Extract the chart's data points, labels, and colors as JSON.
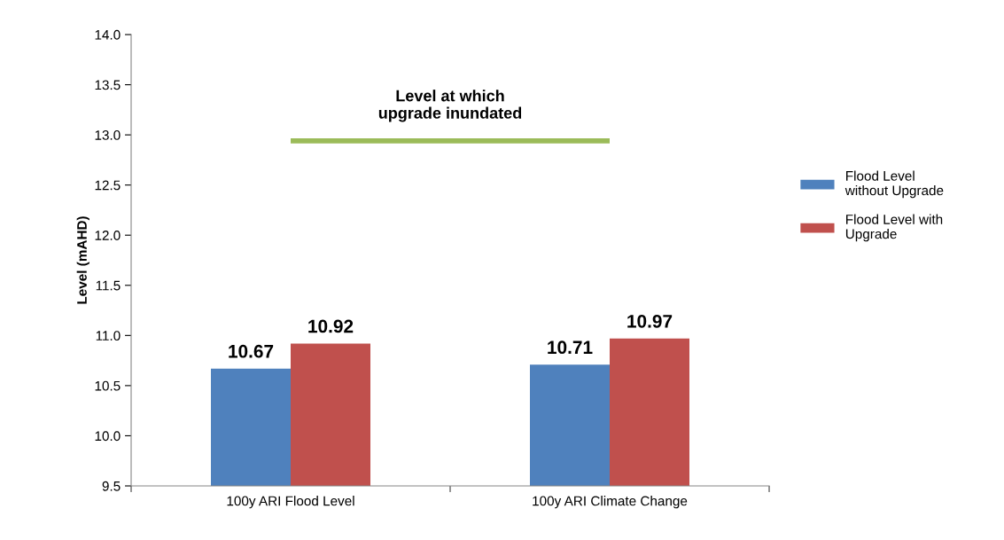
{
  "chart_data": {
    "type": "bar",
    "ylabel": "Level (mAHD)",
    "categories": [
      "100y ARI Flood Level",
      "100y ARI Climate Change"
    ],
    "series": [
      {
        "name": "Flood Level\nwithout Upgrade",
        "color": "#4f81bd",
        "values": [
          10.67,
          10.71
        ]
      },
      {
        "name": "Flood Level with\nUpgrade",
        "color": "#c0504d",
        "values": [
          10.92,
          10.97
        ]
      }
    ],
    "ylim": [
      9.5,
      14.0
    ],
    "yticks": [
      {
        "value": 9.5,
        "label": "9.5"
      },
      {
        "value": 10.0,
        "label": "10.0"
      },
      {
        "value": 10.5,
        "label": "10.5"
      },
      {
        "value": 11.0,
        "label": "11.0"
      },
      {
        "value": 11.5,
        "label": "11.5"
      },
      {
        "value": 12.0,
        "label": "12.0"
      },
      {
        "value": 12.5,
        "label": "12.5"
      },
      {
        "value": 13.0,
        "label": "13.0"
      },
      {
        "value": 13.5,
        "label": "13.5"
      },
      {
        "value": 14.0,
        "label": "14.0"
      }
    ],
    "ref_lines": [
      {
        "axis": "y",
        "value": 12.94,
        "label": "Level at which\nupgrade inundated",
        "color": "#9bbb59"
      }
    ],
    "data_labels": true,
    "grid": false,
    "legend": "right"
  }
}
